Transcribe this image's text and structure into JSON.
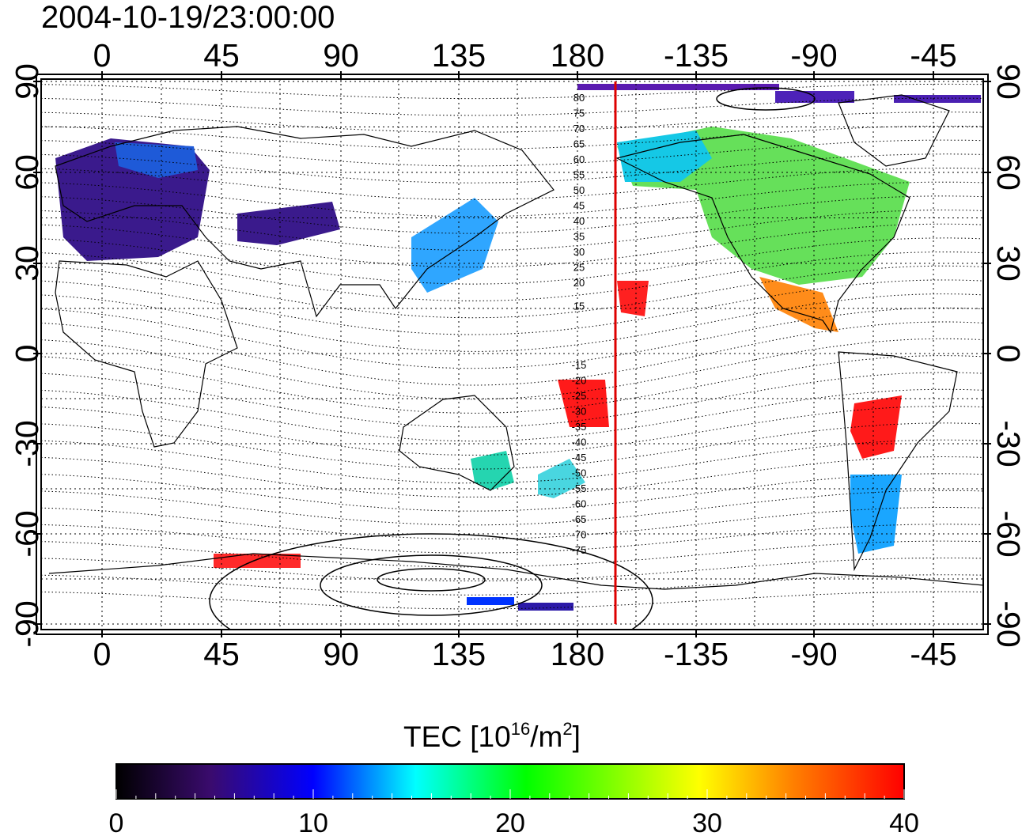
{
  "title": "2004-10-19/23:00:00",
  "map": {
    "x_ticks": [
      "0",
      "45",
      "90",
      "135",
      "180",
      "-135",
      "-90",
      "-45"
    ],
    "y_ticks": [
      "90",
      "60",
      "30",
      "0",
      "-30",
      "-60",
      "-90"
    ],
    "contour_labels_north": [
      "80",
      "75",
      "70",
      "65",
      "60",
      "55",
      "50",
      "45",
      "40",
      "35",
      "30",
      "25",
      "20",
      "15"
    ],
    "contour_labels_south": [
      "-15",
      "-20",
      "-25",
      "-30",
      "-35",
      "-40",
      "-45",
      "-50",
      "-55",
      "-60",
      "-65",
      "-70",
      "-75"
    ],
    "meridian_line_color": "#dd0000"
  },
  "colorbar": {
    "label_main": "TEC  [10",
    "label_sup1": "16",
    "label_mid": "/m",
    "label_sup2": "2",
    "label_end": "]",
    "ticks": [
      "0",
      "10",
      "20",
      "30",
      "40"
    ],
    "colors": [
      "#000000",
      "#3a0b6e",
      "#0000ff",
      "#00ffff",
      "#00ff00",
      "#ffff00",
      "#ff7f00",
      "#ff0000"
    ]
  }
}
